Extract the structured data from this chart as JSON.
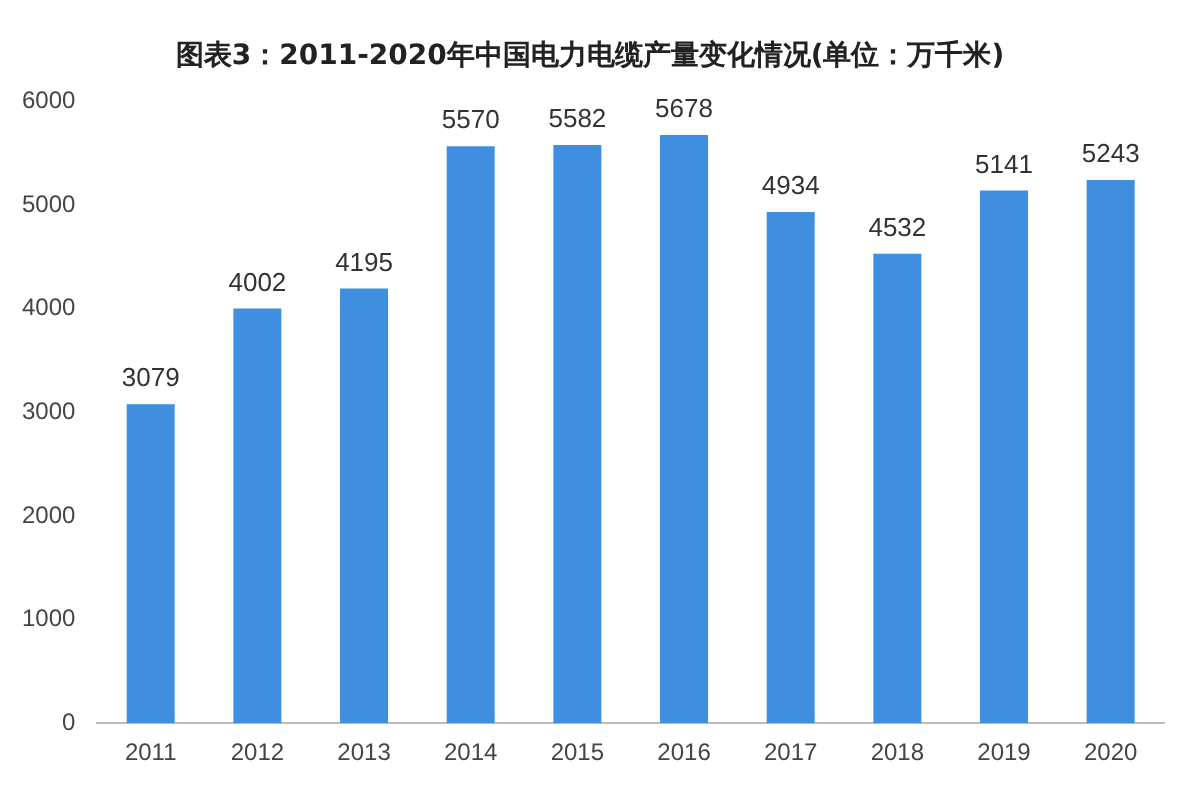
{
  "chart_data": {
    "type": "bar",
    "title": "图表3：2011-2020年中国电力电缆产量变化情况(单位：万千米)",
    "categories": [
      "2011",
      "2012",
      "2013",
      "2014",
      "2015",
      "2016",
      "2017",
      "2018",
      "2019",
      "2020"
    ],
    "values": [
      3079,
      4002,
      4195,
      5570,
      5582,
      5678,
      4934,
      4532,
      5141,
      5243
    ],
    "color": "#3f8ee0",
    "ylim": [
      0,
      6000
    ],
    "yticks": [
      0,
      1000,
      2000,
      3000,
      4000,
      5000,
      6000
    ],
    "grid": false,
    "data_labels": true
  }
}
